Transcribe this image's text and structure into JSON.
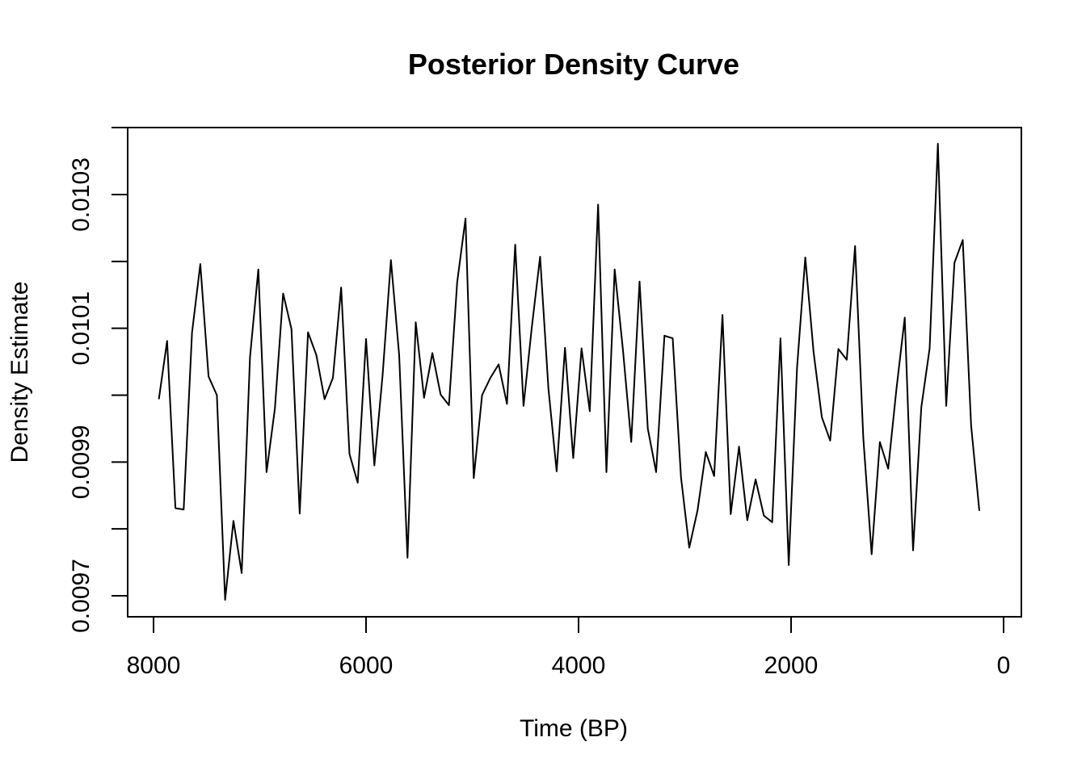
{
  "chart_data": {
    "type": "line",
    "title": "Posterior Density Curve",
    "xlabel": "Time (BP)",
    "ylabel": "Density Estimate",
    "xlim": [
      8000,
      0
    ],
    "ylim": [
      0.00969,
      0.0104
    ],
    "x_reversed": true,
    "x_ticks": [
      8000,
      6000,
      4000,
      2000,
      0
    ],
    "x_tick_labels": [
      "8000",
      "6000",
      "4000",
      "2000",
      "0"
    ],
    "y_ticks": [
      0.0097,
      0.0098,
      0.0099,
      0.01,
      0.0101,
      0.0102,
      0.0103
    ],
    "y_tick_labels": [
      "0.0097",
      "",
      "0.0099",
      "",
      "0.0101",
      "",
      "0.0103"
    ],
    "grid": false,
    "legend": "none",
    "line_color": "#000000",
    "series": [
      {
        "x": [
          7950,
          7872,
          7794,
          7716,
          7638,
          7560,
          7482,
          7404,
          7326,
          7248,
          7170,
          7092,
          7014,
          6936,
          6858,
          6780,
          6702,
          6624,
          6546,
          6468,
          6390,
          6312,
          6234,
          6156,
          6078,
          6000,
          5922,
          5844,
          5766,
          5688,
          5610,
          5532,
          5454,
          5376,
          5298,
          5220,
          5142,
          5064,
          4986,
          4908,
          4830,
          4752,
          4674,
          4596,
          4518,
          4440,
          4362,
          4284,
          4206,
          4128,
          4050,
          3972,
          3894,
          3816,
          3738,
          3660,
          3582,
          3504,
          3426,
          3348,
          3270,
          3192,
          3114,
          3036,
          2958,
          2880,
          2802,
          2724,
          2646,
          2568,
          2490,
          2412,
          2334,
          2256,
          2178,
          2100,
          2022,
          1944,
          1866,
          1788,
          1710,
          1632,
          1554,
          1476,
          1398,
          1320,
          1242,
          1164,
          1086,
          1008,
          930,
          852,
          774,
          696,
          618,
          540,
          462,
          384,
          306,
          228
        ],
        "values": [
          0.009994,
          0.010081,
          0.009831,
          0.009829,
          0.010093,
          0.010196,
          0.010028,
          0.01,
          0.009694,
          0.009812,
          0.009734,
          0.010057,
          0.010188,
          0.009885,
          0.00998,
          0.010152,
          0.010099,
          0.009823,
          0.010094,
          0.01006,
          0.009994,
          0.010026,
          0.010161,
          0.009912,
          0.009869,
          0.010084,
          0.009895,
          0.01003,
          0.010202,
          0.01006,
          0.009757,
          0.010109,
          0.009996,
          0.010063,
          0.010001,
          0.009985,
          0.010169,
          0.010264,
          0.009876,
          0.01,
          0.010026,
          0.010046,
          0.009987,
          0.010225,
          0.009984,
          0.010101,
          0.010207,
          0.01001,
          0.009886,
          0.010071,
          0.009906,
          0.01007,
          0.009976,
          0.010285,
          0.009885,
          0.010188,
          0.010067,
          0.00993,
          0.01017,
          0.00995,
          0.009885,
          0.010089,
          0.010085,
          0.009877,
          0.009772,
          0.009828,
          0.009915,
          0.009879,
          0.01012,
          0.009822,
          0.009923,
          0.009813,
          0.009874,
          0.00982,
          0.00981,
          0.010085,
          0.009746,
          0.010041,
          0.010206,
          0.010064,
          0.009967,
          0.009932,
          0.010069,
          0.010053,
          0.010223,
          0.009936,
          0.009762,
          0.00993,
          0.00989,
          0.010009,
          0.010116,
          0.009768,
          0.009982,
          0.01007,
          0.010376,
          0.009984,
          0.010198,
          0.010232,
          0.009955,
          0.009827
        ]
      }
    ]
  }
}
